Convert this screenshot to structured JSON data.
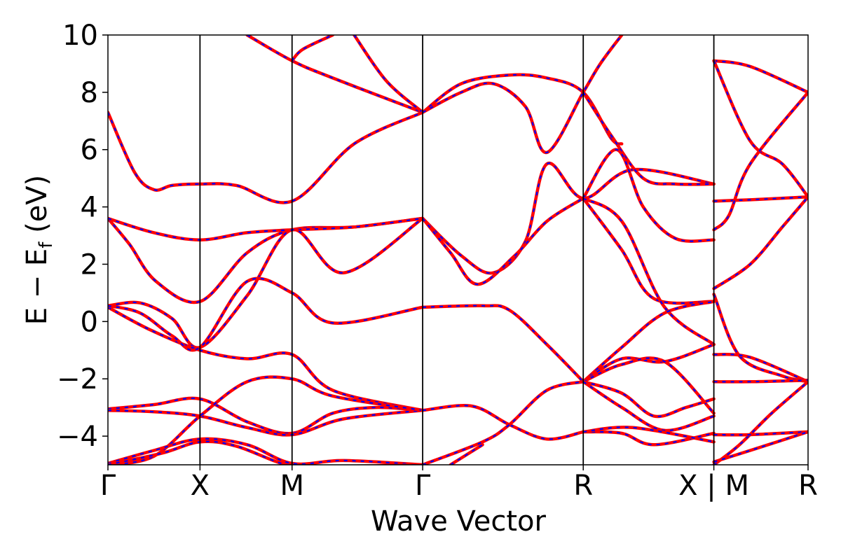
{
  "chart_data": {
    "type": "line",
    "xlabel": "Wave Vector",
    "ylabel": "E − E",
    "ylabel_sub": "f",
    "ylabel_unit": " (eV)",
    "ylim": [
      -5,
      10
    ],
    "yticks": [
      -4,
      -2,
      0,
      2,
      4,
      6,
      8,
      10
    ],
    "ytick_labels": [
      "−4",
      "−2",
      "0",
      "2",
      "4",
      "6",
      "8",
      "10"
    ],
    "xlim": [
      0,
      6.54
    ],
    "kpoints": [
      {
        "label": "Γ",
        "x": 0
      },
      {
        "label": "X",
        "x": 0.86
      },
      {
        "label": "M",
        "x": 1.72
      },
      {
        "label": "Γ",
        "x": 2.94
      },
      {
        "label": "R",
        "x": 4.44
      },
      {
        "label": "X | M",
        "x": 5.66
      },
      {
        "label": "R",
        "x": 6.54
      }
    ],
    "segment_breaks": [
      0.86,
      1.72,
      2.94,
      4.44,
      5.66
    ],
    "colors": {
      "solid": "#ff0000",
      "dashed": "#0000ff"
    },
    "series": [
      {
        "x": [
          0,
          0.25,
          0.43,
          0.6,
          0.86,
          1.2,
          1.72,
          2.3,
          2.94
        ],
        "y": [
          7.3,
          5.2,
          4.6,
          4.75,
          4.8,
          4.75,
          4.2,
          6.2,
          7.3
        ]
      },
      {
        "x": [
          0,
          0.2,
          0.45,
          0.86,
          1.3,
          1.72,
          2.3,
          2.94
        ],
        "y": [
          3.6,
          2.7,
          1.4,
          0.7,
          2.4,
          3.2,
          3.3,
          3.6
        ]
      },
      {
        "x": [
          0,
          0.43,
          0.86,
          1.3,
          1.72,
          2.3,
          2.94
        ],
        "y": [
          3.6,
          3.1,
          2.85,
          3.1,
          3.2,
          3.3,
          3.6
        ]
      },
      {
        "x": [
          0,
          0.3,
          0.6,
          0.86,
          1.3,
          1.72,
          2.2,
          2.94
        ],
        "y": [
          0.55,
          0.65,
          0.1,
          -0.9,
          0.9,
          3.2,
          1.7,
          3.6
        ]
      },
      {
        "x": [
          0,
          0.4,
          0.86,
          1.3,
          1.72,
          2.1,
          2.94
        ],
        "y": [
          0.5,
          -0.3,
          -1.0,
          -1.3,
          -1.15,
          -2.4,
          -3.1
        ]
      },
      {
        "x": [
          0,
          0.3,
          0.6,
          0.86,
          1.3,
          1.72,
          2.1,
          2.94
        ],
        "y": [
          0.55,
          0.3,
          -0.5,
          -0.9,
          1.4,
          1.0,
          -0.05,
          0.5
        ]
      },
      {
        "x": [
          0,
          0.43,
          0.86,
          1.3,
          1.72,
          2.1,
          2.5,
          2.94
        ],
        "y": [
          -3.05,
          -2.9,
          -2.7,
          -3.5,
          -3.9,
          -3.2,
          -3.0,
          -3.1
        ]
      },
      {
        "x": [
          0,
          0.43,
          0.86,
          1.3,
          1.72,
          2.2,
          2.94
        ],
        "y": [
          -3.1,
          -3.15,
          -3.3,
          -3.7,
          -3.95,
          -3.4,
          -3.1
        ]
      },
      {
        "x": [
          0,
          0.43,
          0.86,
          1.3,
          1.72,
          2.1,
          2.94
        ],
        "y": [
          -5.0,
          -4.7,
          -3.3,
          -2.1,
          -2.0,
          -2.6,
          -3.1
        ]
      },
      {
        "x": [
          0,
          0.43,
          0.86,
          1.3,
          1.72,
          2.2,
          2.94
        ],
        "y": [
          -4.95,
          -4.5,
          -4.1,
          -4.3,
          -4.95,
          -4.85,
          -5.0
        ]
      },
      {
        "x": [
          0,
          0.5,
          0.86,
          1.2,
          1.72,
          2.2,
          2.94
        ],
        "y": [
          -5.0,
          -4.6,
          -4.2,
          -4.35,
          -5.05,
          -5.05,
          -5.0
        ]
      },
      {
        "x": [
          1.3,
          1.72,
          2.1,
          2.94
        ],
        "y": [
          10.0,
          9.1,
          8.5,
          7.3
        ]
      },
      {
        "x": [
          1.72,
          1.82,
          2.1
        ],
        "y": [
          9.1,
          9.5,
          10.0
        ]
      },
      {
        "x": [
          2.3,
          2.6,
          2.94
        ],
        "y": [
          10.0,
          8.4,
          7.3
        ]
      },
      {
        "x": [
          2.94,
          3.3,
          3.75,
          4.1,
          4.44,
          4.7,
          4.8
        ],
        "y": [
          7.3,
          8.3,
          8.6,
          8.5,
          8.0,
          6.4,
          6.2
        ]
      },
      {
        "x": [
          2.94,
          3.3,
          3.6,
          3.9,
          4.1,
          4.44,
          4.6,
          4.8
        ],
        "y": [
          7.3,
          8.0,
          8.3,
          7.5,
          5.9,
          8.0,
          9.0,
          10.0
        ]
      },
      {
        "x": [
          2.94,
          3.3,
          3.6,
          3.9,
          4.1,
          4.44,
          4.9,
          5.66
        ],
        "y": [
          3.6,
          2.3,
          1.7,
          2.8,
          5.5,
          4.3,
          5.3,
          4.8
        ]
      },
      {
        "x": [
          2.94,
          3.2,
          3.45,
          3.8,
          4.1,
          4.44
        ],
        "y": [
          3.6,
          2.4,
          1.3,
          2.3,
          3.5,
          4.3
        ]
      },
      {
        "x": [
          2.94,
          3.5,
          3.75,
          4.1,
          4.44
        ],
        "y": [
          0.5,
          0.55,
          0.4,
          -0.8,
          -2.1
        ]
      },
      {
        "x": [
          2.94,
          3.4,
          3.75,
          4.1,
          4.44
        ],
        "y": [
          -3.1,
          -2.95,
          -3.6,
          -4.1,
          -3.85
        ]
      },
      {
        "x": [
          2.94,
          3.5,
          3.75,
          4.1,
          4.44
        ],
        "y": [
          -5.0,
          -4.2,
          -3.6,
          -2.4,
          -2.1
        ]
      },
      {
        "x": [
          3.2,
          3.5
        ],
        "y": [
          -5.0,
          -4.3
        ]
      },
      {
        "x": [
          4.44,
          4.7,
          5.0,
          5.3,
          5.66
        ],
        "y": [
          8.0,
          6.5,
          5.0,
          4.8,
          4.8
        ]
      },
      {
        "x": [
          4.44,
          4.75,
          5.0,
          5.3,
          5.66
        ],
        "y": [
          4.3,
          6.0,
          4.0,
          2.9,
          2.85
        ]
      },
      {
        "x": [
          4.44,
          4.8,
          5.1,
          5.66
        ],
        "y": [
          4.3,
          2.5,
          0.8,
          0.7
        ]
      },
      {
        "x": [
          4.44,
          4.8,
          5.2,
          5.66
        ],
        "y": [
          4.3,
          3.5,
          0.5,
          -0.8
        ]
      },
      {
        "x": [
          4.44,
          4.8,
          5.2,
          5.66
        ],
        "y": [
          -2.1,
          -0.9,
          0.3,
          0.7
        ]
      },
      {
        "x": [
          4.44,
          4.8,
          5.2,
          5.66
        ],
        "y": [
          -2.1,
          -1.3,
          -1.4,
          -0.8
        ]
      },
      {
        "x": [
          4.44,
          4.8,
          5.2,
          5.66
        ],
        "y": [
          -2.1,
          -1.5,
          -1.4,
          -3.2
        ]
      },
      {
        "x": [
          4.44,
          4.8,
          5.1,
          5.4,
          5.66
        ],
        "y": [
          -2.1,
          -2.5,
          -3.3,
          -3.0,
          -2.7
        ]
      },
      {
        "x": [
          4.44,
          4.8,
          5.2,
          5.66
        ],
        "y": [
          -2.1,
          -3.0,
          -3.8,
          -3.3
        ]
      },
      {
        "x": [
          4.44,
          4.8,
          5.1,
          5.66
        ],
        "y": [
          -3.85,
          -3.9,
          -4.3,
          -3.9
        ]
      },
      {
        "x": [
          4.44,
          4.9,
          5.66
        ],
        "y": [
          -3.85,
          -3.7,
          -4.2
        ]
      },
      {
        "x": [
          5.66,
          6.0,
          6.54
        ],
        "y": [
          9.1,
          8.9,
          8.0
        ]
      },
      {
        "x": [
          5.66,
          6.0,
          6.3,
          6.54
        ],
        "y": [
          9.1,
          6.3,
          5.5,
          4.35
        ]
      },
      {
        "x": [
          5.66,
          6.0,
          6.54
        ],
        "y": [
          4.2,
          4.25,
          4.35
        ]
      },
      {
        "x": [
          5.66,
          5.8,
          6.0,
          6.54
        ],
        "y": [
          3.2,
          3.7,
          5.5,
          8.0
        ]
      },
      {
        "x": [
          5.66,
          6.0,
          6.3,
          6.54
        ],
        "y": [
          1.15,
          2.0,
          3.3,
          4.35
        ]
      },
      {
        "x": [
          5.66,
          5.9,
          6.3,
          6.54
        ],
        "y": [
          0.95,
          -1.2,
          -1.9,
          -2.1
        ]
      },
      {
        "x": [
          5.66,
          6.0,
          6.54
        ],
        "y": [
          -1.15,
          -1.25,
          -2.1
        ]
      },
      {
        "x": [
          5.66,
          6.0,
          6.54
        ],
        "y": [
          -2.1,
          -2.1,
          -2.05
        ]
      },
      {
        "x": [
          5.66,
          5.9,
          6.2,
          6.54
        ],
        "y": [
          -5.0,
          -4.3,
          -3.2,
          -2.1
        ]
      },
      {
        "x": [
          5.66,
          6.0,
          6.54
        ],
        "y": [
          -3.95,
          -3.95,
          -3.85
        ]
      },
      {
        "x": [
          5.66,
          6.0,
          6.54
        ],
        "y": [
          -4.9,
          -4.5,
          -3.85
        ]
      }
    ]
  }
}
